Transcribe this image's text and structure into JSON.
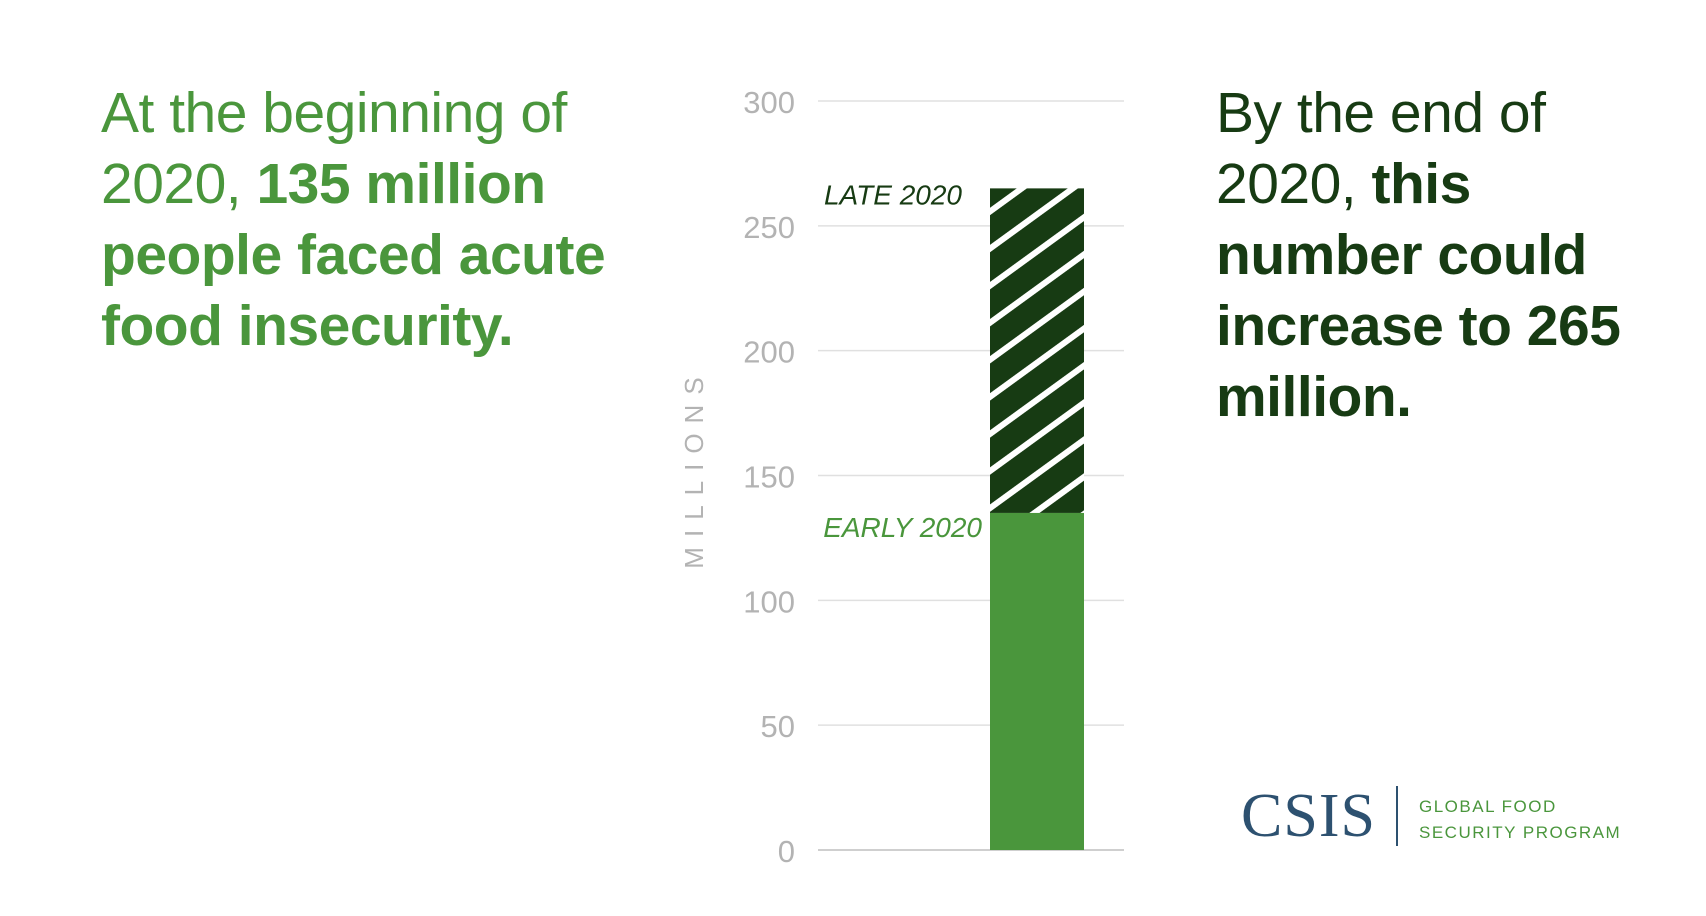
{
  "left_text": {
    "normal": "At the beginning of 2020, ",
    "bold": "135 million people faced acute food insecurity."
  },
  "right_text": {
    "normal": "By the end of 2020, ",
    "bold": "this number could increase to 265 million."
  },
  "logo": {
    "wordmark": "CSIS",
    "program_line1": "GLOBAL FOOD",
    "program_line2": "SECURITY PROGRAM"
  },
  "colors": {
    "early": "#4a963c",
    "late": "#173b13",
    "axis_text": "#b3b3b3",
    "grid": "#e0e0e0"
  },
  "chart_data": {
    "type": "bar",
    "ylabel": "MILLIONS",
    "ylim": [
      0,
      300
    ],
    "yticks": [
      0,
      50,
      100,
      150,
      200,
      250,
      300
    ],
    "grid": true,
    "series": [
      {
        "name": "EARLY 2020",
        "value": 135,
        "fill": "solid"
      },
      {
        "name": "LATE 2020",
        "value": 265,
        "fill": "hatched"
      }
    ]
  }
}
